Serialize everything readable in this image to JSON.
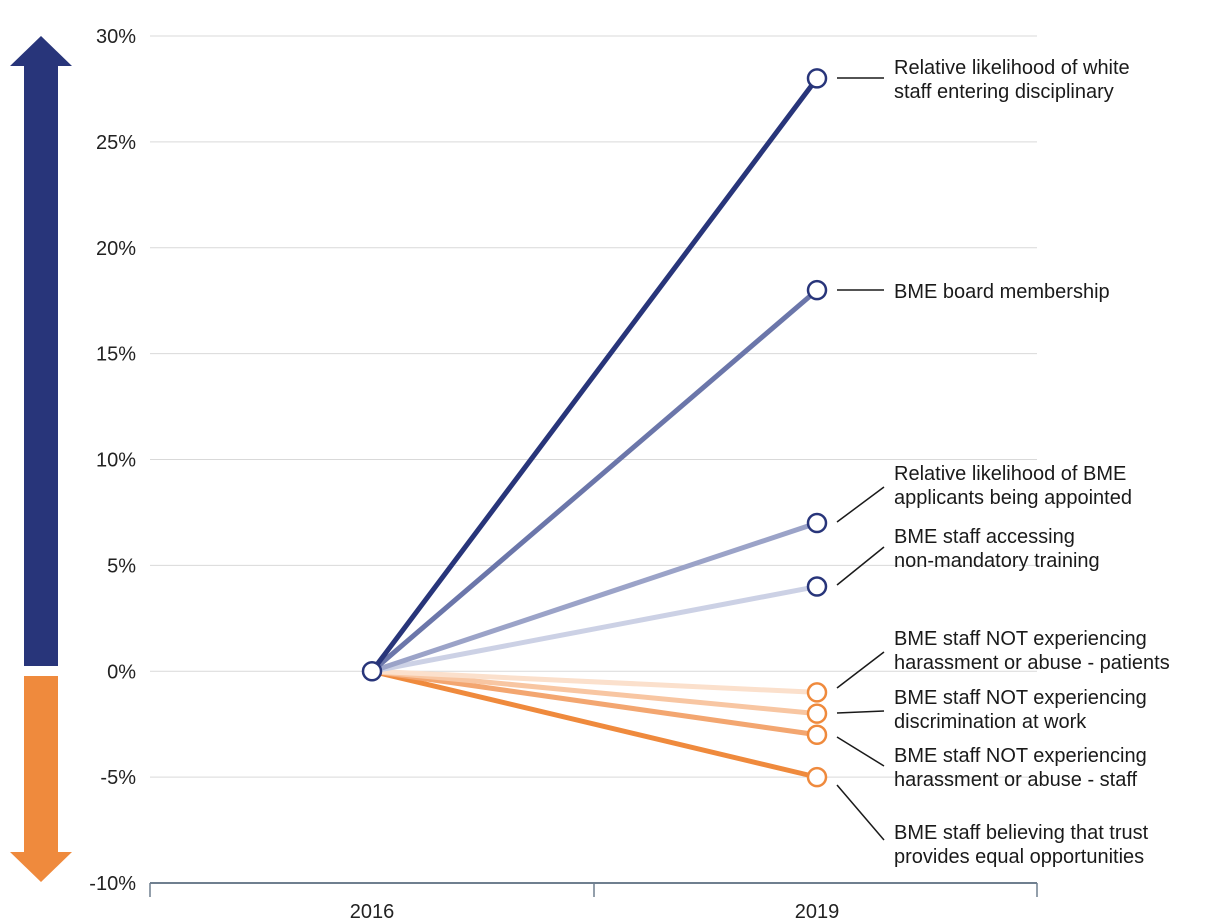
{
  "chart_data": {
    "type": "line",
    "x": [
      "2016",
      "2019"
    ],
    "ylim": [
      -10,
      30
    ],
    "y_ticks": [
      "30%",
      "25%",
      "20%",
      "15%",
      "10%",
      "5%",
      "0%",
      "-5%",
      "-10%"
    ],
    "y_tick_values": [
      30,
      25,
      20,
      15,
      10,
      5,
      0,
      -5,
      -10
    ],
    "grid": true,
    "series": [
      {
        "name": "Relative likelihood of white staff entering disciplinary",
        "label_lines": [
          "Relative likelihood of white",
          "staff entering disciplinary"
        ],
        "values": [
          0,
          28
        ],
        "color": "#28357a"
      },
      {
        "name": "BME board membership",
        "label_lines": [
          "BME board membership"
        ],
        "values": [
          0,
          18
        ],
        "color": "#6b76aa"
      },
      {
        "name": "Relative likelihood of BME applicants being appointed",
        "label_lines": [
          "Relative likelihood of BME",
          "applicants being appointed"
        ],
        "values": [
          0,
          7
        ],
        "color": "#9ba3c8"
      },
      {
        "name": "BME staff accessing non-mandatory training",
        "label_lines": [
          "BME staff accessing",
          "non-mandatory training"
        ],
        "values": [
          0,
          4
        ],
        "color": "#ccd1e5"
      },
      {
        "name": "BME staff NOT experiencing harassment or abuse - patients",
        "label_lines": [
          "BME staff NOT experiencing",
          "harassment or abuse - patients"
        ],
        "values": [
          0,
          -1
        ],
        "color": "#fbe0cc"
      },
      {
        "name": "BME staff NOT experiencing discrimination at work",
        "label_lines": [
          "BME staff NOT experiencing",
          "discrimination at work"
        ],
        "values": [
          0,
          -2
        ],
        "color": "#f8c6a2"
      },
      {
        "name": "BME staff NOT experiencing harassment or abuse - staff",
        "label_lines": [
          "BME staff NOT experiencing",
          "harassment or abuse - staff"
        ],
        "values": [
          0,
          -3
        ],
        "color": "#f3a670"
      },
      {
        "name": "BME staff believing that trust provides equal opportunities",
        "label_lines": [
          "BME staff believing that trust",
          "provides equal opportunities"
        ],
        "values": [
          0,
          -5
        ],
        "color": "#ef8a3d"
      }
    ],
    "colors": {
      "up_arrow": "#28357a",
      "down_arrow": "#ef8a3d",
      "grid": "#d9d9d9",
      "axis": "#6f7f8f",
      "marker_blue": "#28357a",
      "marker_orange": "#ef8a3d"
    }
  }
}
